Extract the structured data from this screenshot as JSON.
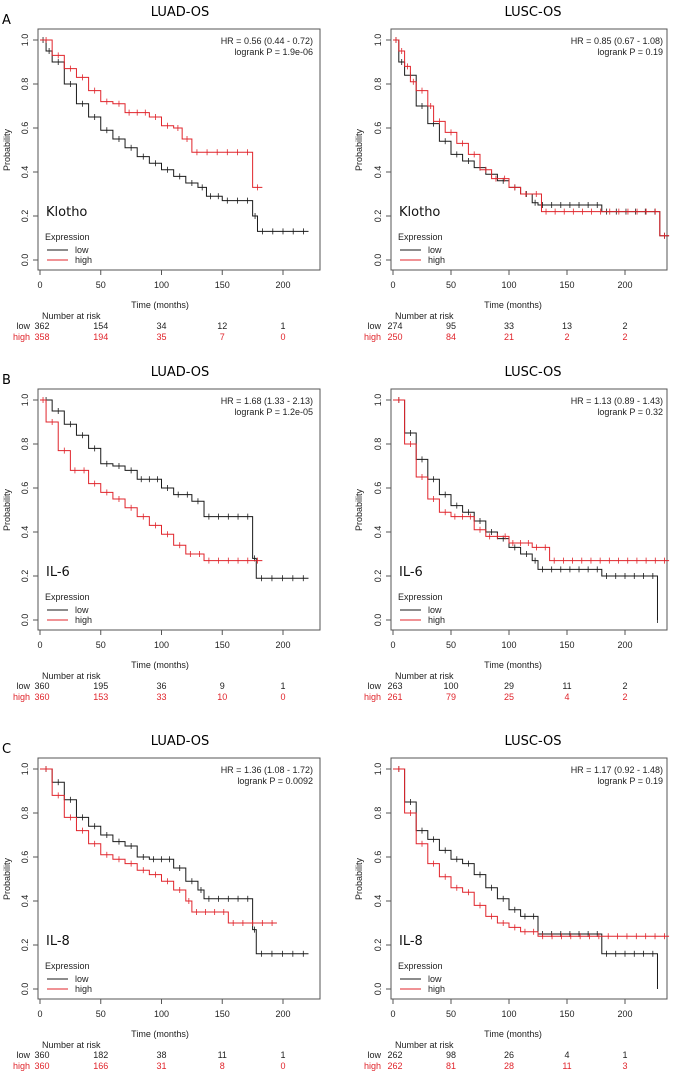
{
  "colors": {
    "low": "#1a1a1a",
    "high": "#e0242b"
  },
  "chart_data": [
    {
      "type": "line",
      "panel": "A",
      "title": "LUAD-OS",
      "gene": "Klotho",
      "hr": "HR = 0.56 (0.44 - 0.72)",
      "p": "logrank P = 1.9e-06",
      "xlabel": "Time (months)",
      "ylabel": "Probability",
      "xlim": [
        0,
        225
      ],
      "ylim": [
        0,
        1
      ],
      "xticks": [
        "0",
        "50",
        "100",
        "150",
        "200"
      ],
      "yticks": [
        "0.0",
        "0.2",
        "0.4",
        "0.6",
        "0.8",
        "1.0"
      ],
      "legend_title": "Expression",
      "legend_placement": "bottom-left",
      "series": [
        {
          "name": "low",
          "points": [
            [
              0,
              1
            ],
            [
              5,
              0.95
            ],
            [
              10,
              0.9
            ],
            [
              20,
              0.8
            ],
            [
              30,
              0.71
            ],
            [
              40,
              0.65
            ],
            [
              50,
              0.59
            ],
            [
              60,
              0.55
            ],
            [
              70,
              0.51
            ],
            [
              80,
              0.47
            ],
            [
              90,
              0.44
            ],
            [
              100,
              0.41
            ],
            [
              110,
              0.38
            ],
            [
              120,
              0.35
            ],
            [
              130,
              0.33
            ],
            [
              137,
              0.29
            ],
            [
              150,
              0.27
            ],
            [
              175,
              0.2
            ],
            [
              179,
              0.13
            ],
            [
              221,
              0.13
            ]
          ]
        },
        {
          "name": "high",
          "points": [
            [
              0,
              1
            ],
            [
              10,
              0.93
            ],
            [
              20,
              0.87
            ],
            [
              30,
              0.83
            ],
            [
              40,
              0.77
            ],
            [
              50,
              0.72
            ],
            [
              60,
              0.71
            ],
            [
              70,
              0.67
            ],
            [
              90,
              0.65
            ],
            [
              100,
              0.61
            ],
            [
              110,
              0.6
            ],
            [
              117,
              0.55
            ],
            [
              125,
              0.49
            ],
            [
              175,
              0.33
            ],
            [
              183,
              0.33
            ]
          ]
        }
      ],
      "risk": {
        "title": "Number at risk",
        "low": [
          "362",
          "154",
          "34",
          "12",
          "1"
        ],
        "high": [
          "358",
          "194",
          "35",
          "7",
          "0"
        ]
      }
    },
    {
      "type": "line",
      "panel": "A",
      "title": "LUSC-OS",
      "gene": "Klotho",
      "hr": "HR = 0.85 (0.67 - 1.08)",
      "p": "logrank P = 0.19",
      "xlabel": "Time (months)",
      "ylabel": "Probability",
      "xlim": [
        0,
        240
      ],
      "ylim": [
        0,
        1
      ],
      "xticks": [
        "0",
        "50",
        "100",
        "150",
        "200"
      ],
      "yticks": [
        "0.0",
        "0.2",
        "0.4",
        "0.6",
        "0.8",
        "1.0"
      ],
      "legend_title": "Expression",
      "legend_placement": "bottom-left",
      "series": [
        {
          "name": "low",
          "points": [
            [
              0,
              1
            ],
            [
              5,
              0.9
            ],
            [
              10,
              0.84
            ],
            [
              20,
              0.7
            ],
            [
              30,
              0.62
            ],
            [
              40,
              0.54
            ],
            [
              50,
              0.48
            ],
            [
              60,
              0.45
            ],
            [
              70,
              0.42
            ],
            [
              80,
              0.39
            ],
            [
              90,
              0.36
            ],
            [
              100,
              0.33
            ],
            [
              110,
              0.3
            ],
            [
              120,
              0.26
            ],
            [
              125,
              0.25
            ],
            [
              180,
              0.22
            ],
            [
              230,
              0.11
            ],
            [
              238,
              0.11
            ]
          ]
        },
        {
          "name": "high",
          "points": [
            [
              0,
              1
            ],
            [
              5,
              0.95
            ],
            [
              10,
              0.88
            ],
            [
              15,
              0.81
            ],
            [
              20,
              0.77
            ],
            [
              30,
              0.7
            ],
            [
              35,
              0.63
            ],
            [
              45,
              0.58
            ],
            [
              55,
              0.53
            ],
            [
              65,
              0.48
            ],
            [
              75,
              0.41
            ],
            [
              85,
              0.37
            ],
            [
              100,
              0.33
            ],
            [
              110,
              0.3
            ],
            [
              128,
              0.22
            ],
            [
              230,
              0.11
            ],
            [
              238,
              0.11
            ]
          ]
        }
      ],
      "risk": {
        "title": "Number at risk",
        "low": [
          "274",
          "95",
          "33",
          "13",
          "2"
        ],
        "high": [
          "250",
          "84",
          "21",
          "2",
          "2"
        ]
      }
    },
    {
      "type": "line",
      "panel": "B",
      "title": "LUAD-OS",
      "gene": "IL-6",
      "hr": "HR = 1.68 (1.33 - 2.13)",
      "p": "logrank P = 1.2e-05",
      "xlabel": "Time (months)",
      "ylabel": "Probability",
      "xlim": [
        0,
        225
      ],
      "ylim": [
        0,
        1
      ],
      "xticks": [
        "0",
        "50",
        "100",
        "150",
        "200"
      ],
      "yticks": [
        "0.0",
        "0.2",
        "0.4",
        "0.6",
        "0.8",
        "1.0"
      ],
      "legend_title": "Expression",
      "legend_placement": "bottom-left",
      "series": [
        {
          "name": "low",
          "points": [
            [
              0,
              1
            ],
            [
              10,
              0.95
            ],
            [
              20,
              0.89
            ],
            [
              30,
              0.84
            ],
            [
              40,
              0.78
            ],
            [
              50,
              0.71
            ],
            [
              60,
              0.7
            ],
            [
              70,
              0.68
            ],
            [
              80,
              0.64
            ],
            [
              100,
              0.6
            ],
            [
              110,
              0.57
            ],
            [
              125,
              0.54
            ],
            [
              135,
              0.47
            ],
            [
              175,
              0.28
            ],
            [
              178,
              0.19
            ],
            [
              221,
              0.19
            ]
          ]
        },
        {
          "name": "high",
          "points": [
            [
              0,
              1
            ],
            [
              5,
              0.9
            ],
            [
              15,
              0.77
            ],
            [
              25,
              0.68
            ],
            [
              40,
              0.62
            ],
            [
              50,
              0.58
            ],
            [
              60,
              0.55
            ],
            [
              70,
              0.51
            ],
            [
              80,
              0.47
            ],
            [
              90,
              0.43
            ],
            [
              100,
              0.39
            ],
            [
              110,
              0.34
            ],
            [
              120,
              0.3
            ],
            [
              135,
              0.27
            ],
            [
              183,
              0.27
            ]
          ]
        }
      ],
      "risk": {
        "title": "Number at risk",
        "low": [
          "360",
          "195",
          "36",
          "9",
          "1"
        ],
        "high": [
          "360",
          "153",
          "33",
          "10",
          "0"
        ]
      }
    },
    {
      "type": "line",
      "panel": "B",
      "title": "LUSC-OS",
      "gene": "IL-6",
      "hr": "HR = 1.13 (0.89 - 1.43)",
      "p": "logrank P = 0.32",
      "xlabel": "Time (months)",
      "ylabel": "Probability",
      "xlim": [
        0,
        240
      ],
      "ylim": [
        0,
        1
      ],
      "xticks": [
        "0",
        "50",
        "100",
        "150",
        "200"
      ],
      "yticks": [
        "0.0",
        "0.2",
        "0.4",
        "0.6",
        "0.8",
        "1.0"
      ],
      "legend_title": "Expression",
      "legend_placement": "bottom-left",
      "series": [
        {
          "name": "low",
          "points": [
            [
              0,
              1
            ],
            [
              10,
              0.85
            ],
            [
              20,
              0.73
            ],
            [
              30,
              0.64
            ],
            [
              40,
              0.57
            ],
            [
              50,
              0.52
            ],
            [
              60,
              0.49
            ],
            [
              70,
              0.45
            ],
            [
              80,
              0.4
            ],
            [
              90,
              0.37
            ],
            [
              100,
              0.33
            ],
            [
              110,
              0.3
            ],
            [
              120,
              0.27
            ],
            [
              125,
              0.23
            ],
            [
              180,
              0.2
            ],
            [
              228,
              0
            ],
            [
              228,
              0
            ]
          ]
        },
        {
          "name": "high",
          "points": [
            [
              0,
              1
            ],
            [
              10,
              0.8
            ],
            [
              20,
              0.65
            ],
            [
              30,
              0.55
            ],
            [
              40,
              0.49
            ],
            [
              50,
              0.47
            ],
            [
              70,
              0.41
            ],
            [
              80,
              0.38
            ],
            [
              100,
              0.35
            ],
            [
              120,
              0.33
            ],
            [
              135,
              0.27
            ],
            [
              238,
              0.27
            ]
          ]
        }
      ],
      "risk": {
        "title": "Number at risk",
        "low": [
          "263",
          "100",
          "29",
          "11",
          "2"
        ],
        "high": [
          "261",
          "79",
          "25",
          "4",
          "2"
        ]
      }
    },
    {
      "type": "line",
      "panel": "C",
      "title": "LUAD-OS",
      "gene": "IL-8",
      "hr": "HR = 1.36 (1.08 - 1.72)",
      "p": "logrank P = 0.0092",
      "xlabel": "Time (months)",
      "ylabel": "Probability",
      "xlim": [
        0,
        225
      ],
      "ylim": [
        0,
        1
      ],
      "xticks": [
        "0",
        "50",
        "100",
        "150",
        "200"
      ],
      "yticks": [
        "0.0",
        "0.2",
        "0.4",
        "0.6",
        "0.8",
        "1.0"
      ],
      "legend_title": "Expression",
      "legend_placement": "bottom-left",
      "series": [
        {
          "name": "low",
          "points": [
            [
              0,
              1
            ],
            [
              10,
              0.94
            ],
            [
              20,
              0.86
            ],
            [
              30,
              0.78
            ],
            [
              40,
              0.74
            ],
            [
              50,
              0.7
            ],
            [
              60,
              0.67
            ],
            [
              70,
              0.65
            ],
            [
              80,
              0.6
            ],
            [
              90,
              0.59
            ],
            [
              110,
              0.55
            ],
            [
              120,
              0.49
            ],
            [
              130,
              0.45
            ],
            [
              135,
              0.41
            ],
            [
              175,
              0.27
            ],
            [
              178,
              0.16
            ],
            [
              221,
              0.16
            ]
          ]
        },
        {
          "name": "high",
          "points": [
            [
              0,
              1
            ],
            [
              10,
              0.88
            ],
            [
              20,
              0.78
            ],
            [
              30,
              0.72
            ],
            [
              40,
              0.66
            ],
            [
              50,
              0.61
            ],
            [
              60,
              0.59
            ],
            [
              70,
              0.57
            ],
            [
              80,
              0.54
            ],
            [
              90,
              0.52
            ],
            [
              100,
              0.49
            ],
            [
              110,
              0.45
            ],
            [
              120,
              0.4
            ],
            [
              125,
              0.35
            ],
            [
              155,
              0.3
            ],
            [
              195,
              0.3
            ]
          ]
        }
      ],
      "risk": {
        "title": "Number at risk",
        "low": [
          "360",
          "182",
          "38",
          "11",
          "1"
        ],
        "high": [
          "360",
          "166",
          "31",
          "8",
          "0"
        ]
      }
    },
    {
      "type": "line",
      "panel": "C",
      "title": "LUSC-OS",
      "gene": "IL-8",
      "hr": "HR = 1.17 (0.92 - 1.48)",
      "p": "logrank P = 0.19",
      "xlabel": "Time (months)",
      "ylabel": "Probability",
      "xlim": [
        0,
        240
      ],
      "ylim": [
        0,
        1
      ],
      "xticks": [
        "0",
        "50",
        "100",
        "150",
        "200"
      ],
      "yticks": [
        "0.0",
        "0.2",
        "0.4",
        "0.6",
        "0.8",
        "1.0"
      ],
      "legend_title": "Expression",
      "legend_placement": "bottom-left",
      "series": [
        {
          "name": "low",
          "points": [
            [
              0,
              1
            ],
            [
              10,
              0.85
            ],
            [
              20,
              0.72
            ],
            [
              30,
              0.68
            ],
            [
              40,
              0.63
            ],
            [
              50,
              0.59
            ],
            [
              60,
              0.57
            ],
            [
              70,
              0.52
            ],
            [
              80,
              0.46
            ],
            [
              90,
              0.41
            ],
            [
              100,
              0.36
            ],
            [
              110,
              0.33
            ],
            [
              125,
              0.25
            ],
            [
              180,
              0.16
            ],
            [
              228,
              0
            ]
          ]
        },
        {
          "name": "high",
          "points": [
            [
              0,
              1
            ],
            [
              10,
              0.8
            ],
            [
              20,
              0.66
            ],
            [
              30,
              0.57
            ],
            [
              40,
              0.51
            ],
            [
              50,
              0.46
            ],
            [
              60,
              0.44
            ],
            [
              70,
              0.38
            ],
            [
              80,
              0.33
            ],
            [
              90,
              0.3
            ],
            [
              100,
              0.28
            ],
            [
              110,
              0.26
            ],
            [
              125,
              0.24
            ],
            [
              238,
              0.24
            ]
          ]
        }
      ],
      "risk": {
        "title": "Number at risk",
        "low": [
          "262",
          "98",
          "26",
          "4",
          "1"
        ],
        "high": [
          "262",
          "81",
          "28",
          "11",
          "3"
        ]
      }
    }
  ]
}
